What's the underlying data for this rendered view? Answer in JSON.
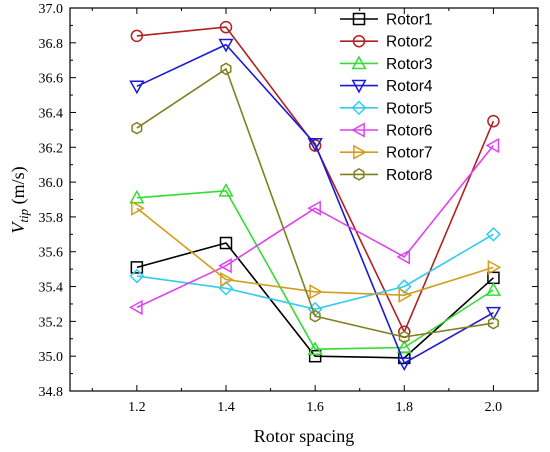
{
  "chart_data": {
    "type": "line",
    "xlabel": "Rotor spacing",
    "ylabel": {
      "main": "V",
      "subscript": "tip",
      "unit": " (m/s)"
    },
    "x": [
      1.2,
      1.4,
      1.6,
      1.8,
      2.0
    ],
    "xlim": [
      1.05,
      2.1
    ],
    "ylim": [
      34.8,
      37.0
    ],
    "xticks": [
      "1.2",
      "1.4",
      "1.6",
      "1.8",
      "2.0"
    ],
    "yticks": [
      "34.8",
      "35.0",
      "35.2",
      "35.4",
      "35.6",
      "35.8",
      "36.0",
      "36.2",
      "36.4",
      "36.6",
      "36.8",
      "37.0"
    ],
    "grid": false,
    "legend_position": "top-right",
    "series": [
      {
        "name": "Rotor1",
        "color": "#000000",
        "marker": "square",
        "values": [
          35.51,
          35.65,
          35.0,
          34.99,
          35.45
        ]
      },
      {
        "name": "Rotor2",
        "color": "#b22222",
        "marker": "circle",
        "values": [
          36.84,
          36.89,
          36.21,
          35.14,
          36.35
        ]
      },
      {
        "name": "Rotor3",
        "color": "#33dd33",
        "marker": "triangle-up",
        "values": [
          35.91,
          35.95,
          35.04,
          35.05,
          35.38
        ]
      },
      {
        "name": "Rotor4",
        "color": "#1a1ad4",
        "marker": "triangle-down",
        "values": [
          36.55,
          36.79,
          36.22,
          34.96,
          35.25
        ]
      },
      {
        "name": "Rotor5",
        "color": "#33ccee",
        "marker": "diamond",
        "values": [
          35.46,
          35.39,
          35.27,
          35.4,
          35.7
        ]
      },
      {
        "name": "Rotor6",
        "color": "#dd44ee",
        "marker": "triangle-left",
        "values": [
          35.28,
          35.52,
          35.85,
          35.57,
          36.21
        ]
      },
      {
        "name": "Rotor7",
        "color": "#d49c1c",
        "marker": "triangle-right",
        "values": [
          35.85,
          35.44,
          35.37,
          35.35,
          35.51
        ]
      },
      {
        "name": "Rotor8",
        "color": "#808020",
        "marker": "hexagon",
        "values": [
          36.31,
          36.65,
          35.23,
          35.11,
          35.19
        ]
      }
    ]
  }
}
